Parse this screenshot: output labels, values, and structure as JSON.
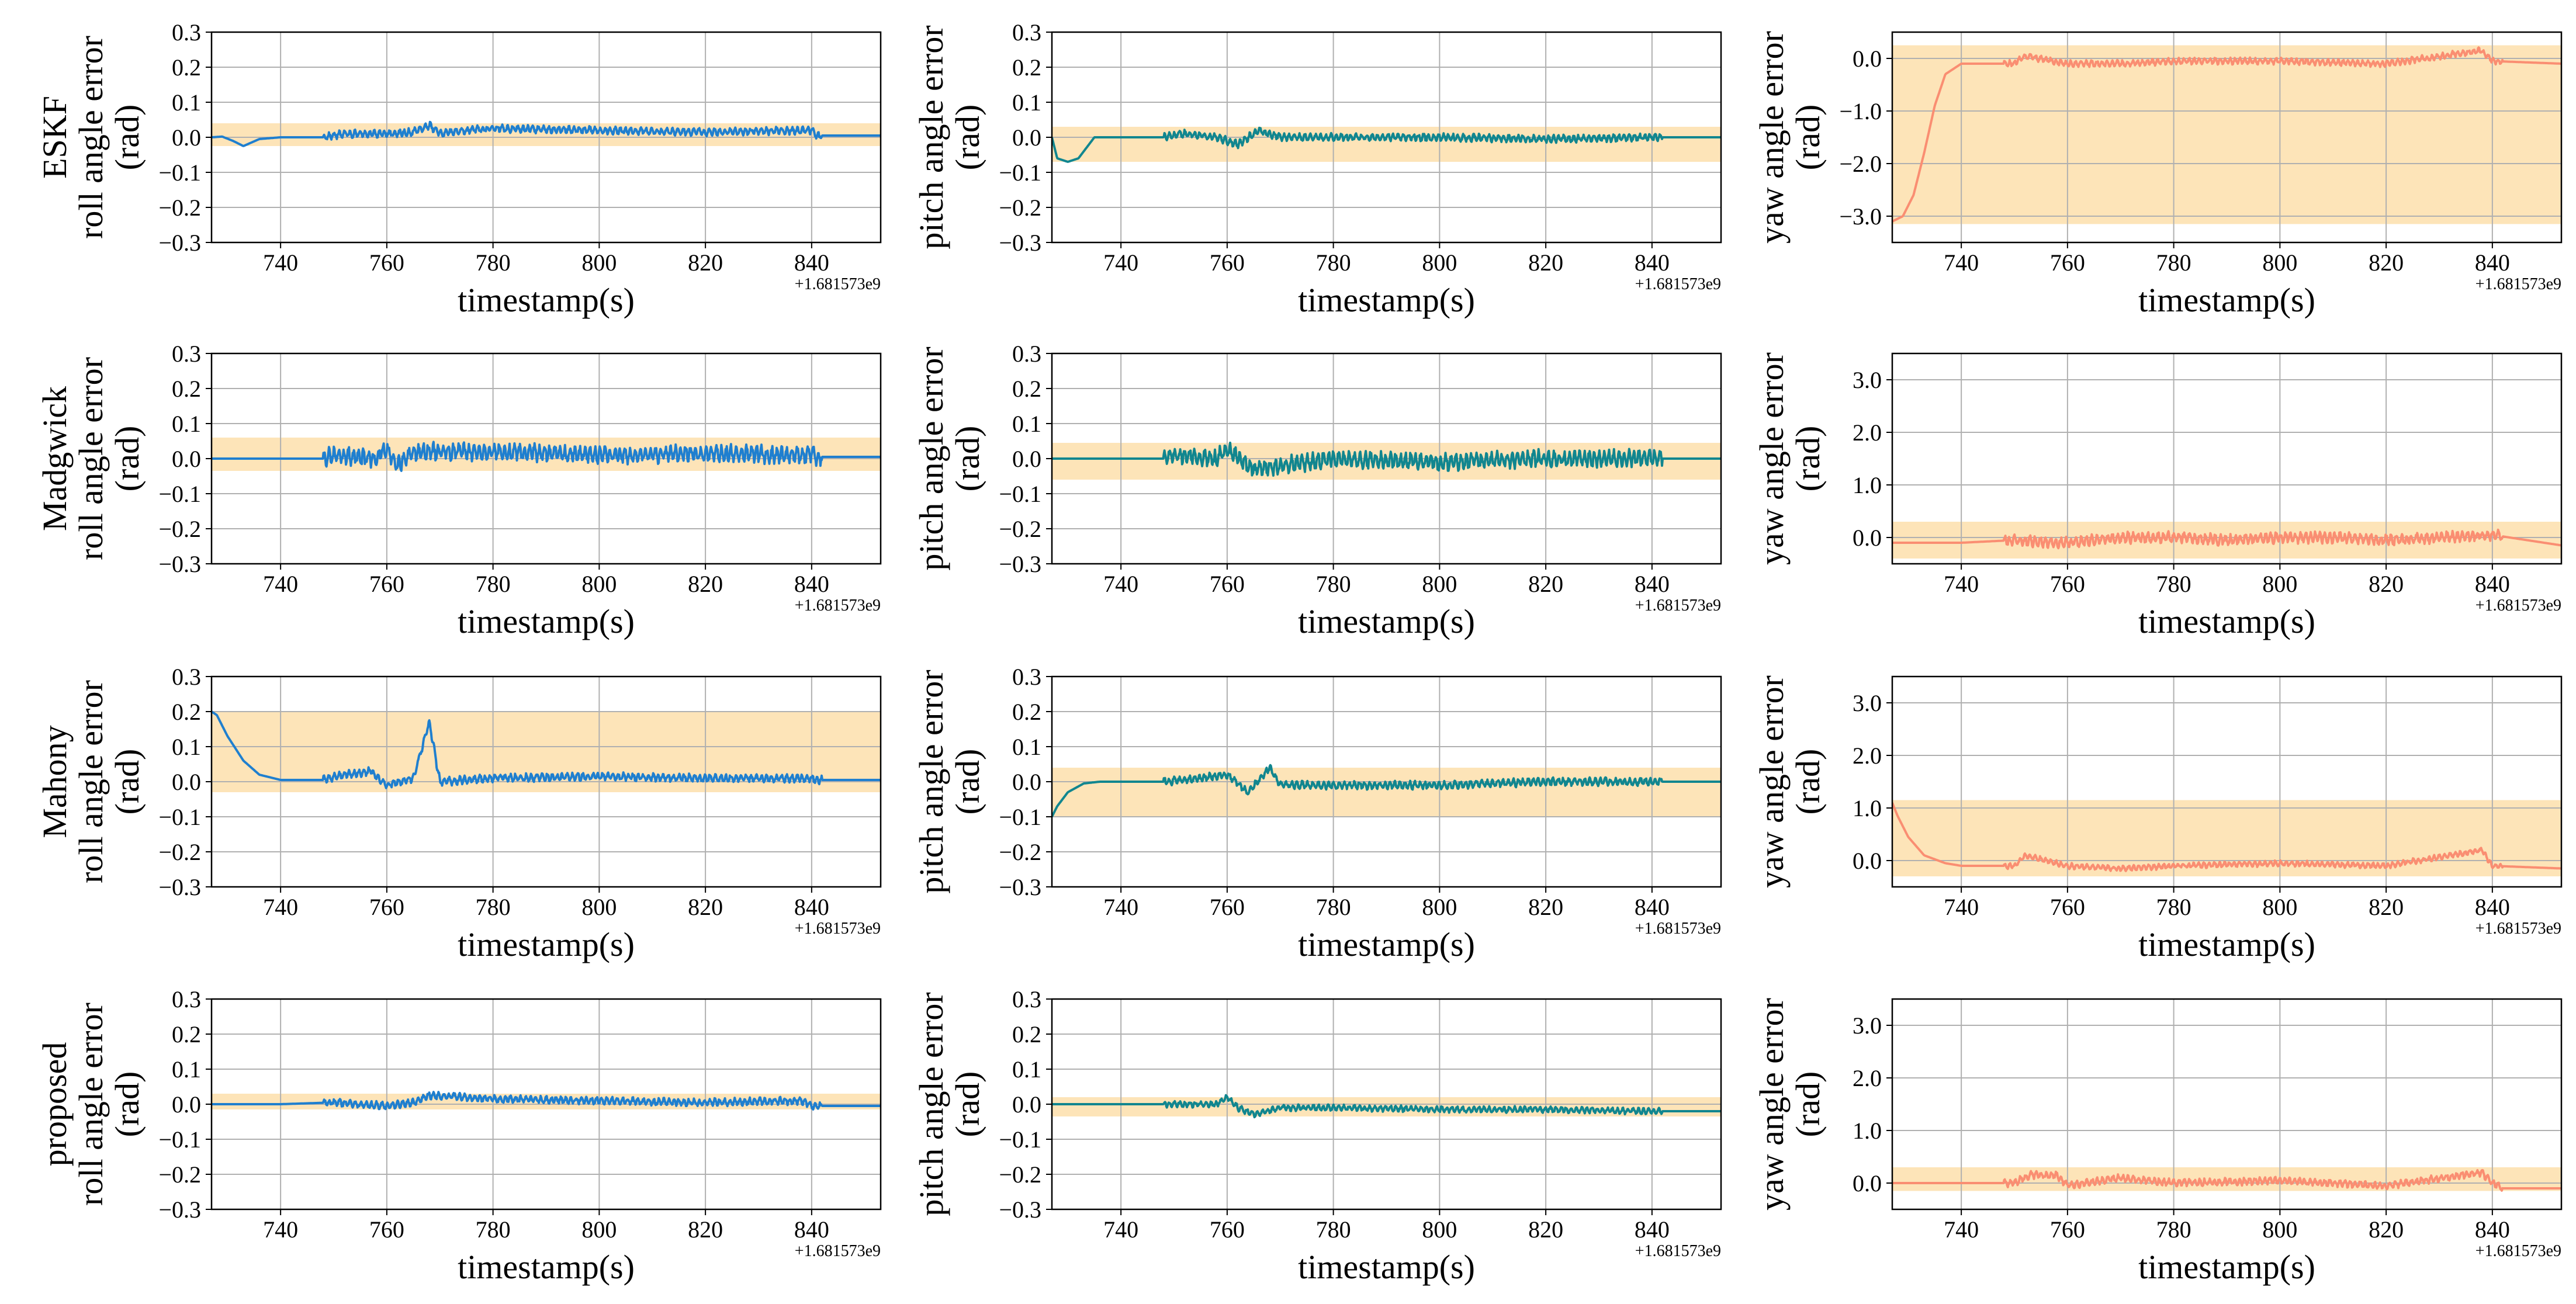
{
  "figure": {
    "xlabel": "timestamp(s)",
    "offset_text": "+1.681573e9",
    "band_color": "#fde4b8",
    "grid_color": "#b0b0b0",
    "colors": {
      "roll": "#1f7fcf",
      "pitch": "#11868f",
      "yaw": "#fa8e72"
    },
    "row_labels": [
      "ESKF",
      "Madgwick",
      "Mahony",
      "proposed"
    ],
    "col_labels": [
      "roll angle error\n(rad)",
      "pitch angle error\n(rad)",
      "yaw angle error\n(rad)"
    ]
  },
  "chart_data": [
    {
      "type": "line",
      "row": "ESKF",
      "angle": "roll",
      "ylabel": "roll angle error\n(rad)",
      "xlabel": "timestamp(s)",
      "xlim": [
        727,
        853
      ],
      "ylim": [
        -0.3,
        0.3
      ],
      "yticks": [
        -0.3,
        -0.2,
        -0.1,
        0.0,
        0.1,
        0.2,
        0.3
      ],
      "ytick_labels": [
        "−0.3",
        "−0.2",
        "−0.1",
        "0.0",
        "0.1",
        "0.2",
        "0.3"
      ],
      "xticks": [
        740,
        760,
        780,
        800,
        820,
        840
      ],
      "band": [
        -0.025,
        0.04
      ],
      "noise_amp": 0.012,
      "grid": true,
      "x": [
        727,
        729,
        731,
        733,
        736,
        740,
        748,
        752,
        760,
        765,
        768,
        770,
        775,
        780,
        800,
        820,
        840,
        841,
        853
      ],
      "y": [
        0.0,
        0.002,
        -0.01,
        -0.025,
        -0.005,
        0.0,
        0.0,
        0.01,
        0.01,
        0.015,
        0.035,
        0.01,
        0.02,
        0.025,
        0.02,
        0.015,
        0.02,
        0.005,
        0.005
      ]
    },
    {
      "type": "line",
      "row": "ESKF",
      "angle": "pitch",
      "ylabel": "pitch angle error\n(rad)",
      "xlabel": "timestamp(s)",
      "xlim": [
        727,
        853
      ],
      "ylim": [
        -0.3,
        0.3
      ],
      "yticks": [
        -0.3,
        -0.2,
        -0.1,
        0.0,
        0.1,
        0.2,
        0.3
      ],
      "ytick_labels": [
        "−0.3",
        "−0.2",
        "−0.1",
        "0.0",
        "0.1",
        "0.2",
        "0.3"
      ],
      "xticks": [
        740,
        760,
        780,
        800,
        820,
        840
      ],
      "band": [
        -0.07,
        0.03
      ],
      "noise_amp": 0.012,
      "grid": true,
      "x": [
        727,
        728,
        730,
        732,
        735,
        740,
        748,
        752,
        758,
        762,
        766,
        770,
        780,
        800,
        820,
        840,
        841,
        853
      ],
      "y": [
        0.0,
        -0.06,
        -0.07,
        -0.06,
        0.0,
        0.0,
        0.0,
        0.01,
        0.0,
        -0.02,
        0.02,
        0.0,
        0.0,
        0.0,
        -0.005,
        0.0,
        0.0,
        0.0
      ]
    },
    {
      "type": "line",
      "row": "ESKF",
      "angle": "yaw",
      "ylabel": "yaw angle error\n(rad)",
      "xlabel": "timestamp(s)",
      "xlim": [
        727,
        853
      ],
      "ylim": [
        -3.5,
        0.5
      ],
      "yticks": [
        -3.0,
        -2.0,
        -1.0,
        0.0
      ],
      "ytick_labels": [
        "−3.0",
        "−2.0",
        "−1.0",
        "0.0"
      ],
      "xticks": [
        740,
        760,
        780,
        800,
        820,
        840
      ],
      "band": [
        -3.15,
        0.25
      ],
      "noise_amp": 0.07,
      "grid": true,
      "x": [
        727,
        729,
        731,
        733,
        735,
        737,
        740,
        750,
        752,
        760,
        770,
        780,
        800,
        820,
        838,
        840,
        853
      ],
      "y": [
        -3.1,
        -3.0,
        -2.6,
        -1.8,
        -0.9,
        -0.3,
        -0.1,
        -0.1,
        0.05,
        -0.1,
        -0.1,
        -0.05,
        -0.05,
        -0.1,
        0.15,
        -0.05,
        -0.1
      ]
    },
    {
      "type": "line",
      "row": "Madgwick",
      "angle": "roll",
      "ylabel": "roll angle error\n(rad)",
      "xlabel": "timestamp(s)",
      "xlim": [
        727,
        853
      ],
      "ylim": [
        -0.3,
        0.3
      ],
      "yticks": [
        -0.3,
        -0.2,
        -0.1,
        0.0,
        0.1,
        0.2,
        0.3
      ],
      "ytick_labels": [
        "−0.3",
        "−0.2",
        "−0.1",
        "0.0",
        "0.1",
        "0.2",
        "0.3"
      ],
      "xticks": [
        740,
        760,
        780,
        800,
        820,
        840
      ],
      "band": [
        -0.035,
        0.06
      ],
      "noise_amp": 0.028,
      "grid": true,
      "x": [
        727,
        740,
        748,
        750,
        758,
        760,
        762,
        765,
        770,
        780,
        800,
        820,
        840,
        841,
        853
      ],
      "y": [
        0.0,
        0.0,
        0.0,
        0.01,
        0.0,
        0.03,
        -0.02,
        0.02,
        0.02,
        0.02,
        0.01,
        0.015,
        0.01,
        0.005,
        0.005
      ]
    },
    {
      "type": "line",
      "row": "Madgwick",
      "angle": "pitch",
      "ylabel": "pitch angle error\n(rad)",
      "xlabel": "timestamp(s)",
      "xlim": [
        727,
        853
      ],
      "ylim": [
        -0.3,
        0.3
      ],
      "yticks": [
        -0.3,
        -0.2,
        -0.1,
        0.0,
        0.1,
        0.2,
        0.3
      ],
      "ytick_labels": [
        "−0.3",
        "−0.2",
        "−0.1",
        "0.0",
        "0.1",
        "0.2",
        "0.3"
      ],
      "xticks": [
        740,
        760,
        780,
        800,
        820,
        840
      ],
      "band": [
        -0.06,
        0.045
      ],
      "noise_amp": 0.028,
      "grid": true,
      "x": [
        727,
        740,
        748,
        750,
        758,
        760,
        765,
        770,
        780,
        800,
        820,
        840,
        841,
        853
      ],
      "y": [
        0.0,
        0.0,
        0.0,
        0.01,
        0.0,
        0.03,
        -0.03,
        -0.02,
        0.0,
        -0.01,
        0.0,
        0.0,
        0.0,
        0.0
      ]
    },
    {
      "type": "line",
      "row": "Madgwick",
      "angle": "yaw",
      "ylabel": "yaw angle error\n(rad)",
      "xlabel": "timestamp(s)",
      "xlim": [
        727,
        853
      ],
      "ylim": [
        -0.5,
        3.5
      ],
      "yticks": [
        0.0,
        1.0,
        2.0,
        3.0
      ],
      "ytick_labels": [
        "0.0",
        "1.0",
        "2.0",
        "3.0"
      ],
      "xticks": [
        740,
        760,
        780,
        800,
        820,
        840
      ],
      "band": [
        -0.4,
        0.3
      ],
      "noise_amp": 0.12,
      "grid": true,
      "x": [
        727,
        740,
        750,
        760,
        770,
        780,
        790,
        800,
        810,
        820,
        830,
        840,
        853
      ],
      "y": [
        -0.1,
        -0.1,
        -0.05,
        -0.1,
        0.0,
        0.0,
        -0.05,
        0.0,
        0.0,
        -0.05,
        0.0,
        0.05,
        -0.15
      ]
    },
    {
      "type": "line",
      "row": "Mahony",
      "angle": "roll",
      "ylabel": "roll angle error\n(rad)",
      "xlabel": "timestamp(s)",
      "xlim": [
        727,
        853
      ],
      "ylim": [
        -0.3,
        0.3
      ],
      "yticks": [
        -0.3,
        -0.2,
        -0.1,
        0.0,
        0.1,
        0.2,
        0.3
      ],
      "ytick_labels": [
        "−0.3",
        "−0.2",
        "−0.1",
        "0.0",
        "0.1",
        "0.2",
        "0.3"
      ],
      "xticks": [
        740,
        760,
        780,
        800,
        820,
        840
      ],
      "band": [
        -0.03,
        0.2
      ],
      "noise_amp": 0.013,
      "grid": true,
      "x": [
        727,
        728,
        730,
        733,
        736,
        740,
        748,
        752,
        757,
        760,
        765,
        768,
        770,
        780,
        800,
        820,
        840,
        841,
        853
      ],
      "y": [
        0.2,
        0.19,
        0.13,
        0.06,
        0.02,
        0.005,
        0.005,
        0.02,
        0.03,
        -0.01,
        0.01,
        0.17,
        0.0,
        0.01,
        0.015,
        0.01,
        0.01,
        0.005,
        0.005
      ]
    },
    {
      "type": "line",
      "row": "Mahony",
      "angle": "pitch",
      "ylabel": "pitch angle error\n(rad)",
      "xlabel": "timestamp(s)",
      "xlim": [
        727,
        853
      ],
      "ylim": [
        -0.3,
        0.3
      ],
      "yticks": [
        -0.3,
        -0.2,
        -0.1,
        0.0,
        0.1,
        0.2,
        0.3
      ],
      "ytick_labels": [
        "−0.3",
        "−0.2",
        "−0.1",
        "0.0",
        "0.1",
        "0.2",
        "0.3"
      ],
      "xticks": [
        740,
        760,
        780,
        800,
        820,
        840
      ],
      "band": [
        -0.1,
        0.04
      ],
      "noise_amp": 0.013,
      "grid": true,
      "x": [
        727,
        728,
        730,
        733,
        736,
        740,
        748,
        755,
        760,
        764,
        768,
        770,
        780,
        800,
        820,
        840,
        841,
        853
      ],
      "y": [
        -0.1,
        -0.07,
        -0.03,
        -0.005,
        0.0,
        0.0,
        0.0,
        0.01,
        0.02,
        -0.03,
        0.04,
        -0.01,
        -0.01,
        -0.01,
        0.0,
        0.0,
        0.0,
        0.0
      ]
    },
    {
      "type": "line",
      "row": "Mahony",
      "angle": "yaw",
      "ylabel": "yaw angle error\n(rad)",
      "xlabel": "timestamp(s)",
      "xlim": [
        727,
        853
      ],
      "ylim": [
        -0.5,
        3.5
      ],
      "yticks": [
        0.0,
        1.0,
        2.0,
        3.0
      ],
      "ytick_labels": [
        "0.0",
        "1.0",
        "2.0",
        "3.0"
      ],
      "xticks": [
        740,
        760,
        780,
        800,
        820,
        840
      ],
      "band": [
        -0.3,
        1.15
      ],
      "noise_amp": 0.06,
      "grid": true,
      "x": [
        727,
        728,
        730,
        733,
        737,
        740,
        750,
        752,
        760,
        770,
        780,
        800,
        820,
        838,
        840,
        853
      ],
      "y": [
        1.1,
        0.85,
        0.45,
        0.1,
        -0.05,
        -0.1,
        -0.1,
        0.1,
        -0.1,
        -0.15,
        -0.1,
        -0.05,
        -0.1,
        0.2,
        -0.1,
        -0.15
      ]
    },
    {
      "type": "line",
      "row": "proposed",
      "angle": "roll",
      "ylabel": "roll angle error\n(rad)",
      "xlabel": "timestamp(s)",
      "xlim": [
        727,
        853
      ],
      "ylim": [
        -0.3,
        0.3
      ],
      "yticks": [
        -0.3,
        -0.2,
        -0.1,
        0.0,
        0.1,
        0.2,
        0.3
      ],
      "ytick_labels": [
        "−0.3",
        "−0.2",
        "−0.1",
        "0.0",
        "0.1",
        "0.2",
        "0.3"
      ],
      "xticks": [
        740,
        760,
        780,
        800,
        820,
        840
      ],
      "band": [
        -0.015,
        0.03
      ],
      "noise_amp": 0.012,
      "grid": true,
      "x": [
        727,
        740,
        750,
        760,
        765,
        768,
        780,
        800,
        820,
        838,
        840,
        842,
        853
      ],
      "y": [
        0.0,
        0.0,
        0.005,
        -0.005,
        0.005,
        0.025,
        0.015,
        0.01,
        0.005,
        0.01,
        -0.005,
        -0.005,
        -0.005
      ]
    },
    {
      "type": "line",
      "row": "proposed",
      "angle": "pitch",
      "ylabel": "pitch angle error\n(rad)",
      "xlabel": "timestamp(s)",
      "xlim": [
        727,
        853
      ],
      "ylim": [
        -0.3,
        0.3
      ],
      "yticks": [
        -0.3,
        -0.2,
        -0.1,
        0.0,
        0.1,
        0.2,
        0.3
      ],
      "ytick_labels": [
        "−0.3",
        "−0.2",
        "−0.1",
        "0.0",
        "0.1",
        "0.2",
        "0.3"
      ],
      "xticks": [
        740,
        760,
        780,
        800,
        820,
        840
      ],
      "band": [
        -0.035,
        0.02
      ],
      "noise_amp": 0.01,
      "grid": true,
      "x": [
        727,
        740,
        750,
        758,
        760,
        762,
        765,
        770,
        780,
        800,
        820,
        840,
        853
      ],
      "y": [
        0.0,
        0.0,
        0.0,
        0.0,
        0.02,
        -0.01,
        -0.03,
        -0.01,
        -0.01,
        -0.015,
        -0.015,
        -0.02,
        -0.02
      ]
    },
    {
      "type": "line",
      "row": "proposed",
      "angle": "yaw",
      "ylabel": "yaw angle error\n(rad)",
      "xlabel": "timestamp(s)",
      "xlim": [
        727,
        853
      ],
      "ylim": [
        -0.5,
        3.5
      ],
      "yticks": [
        0.0,
        1.0,
        2.0,
        3.0
      ],
      "ytick_labels": [
        "0.0",
        "1.0",
        "2.0",
        "3.0"
      ],
      "xticks": [
        740,
        760,
        780,
        800,
        820,
        840
      ],
      "band": [
        -0.15,
        0.3
      ],
      "noise_amp": 0.08,
      "grid": true,
      "x": [
        727,
        740,
        750,
        753,
        758,
        760,
        770,
        780,
        800,
        820,
        838,
        840,
        842,
        853
      ],
      "y": [
        0.0,
        0.0,
        0.0,
        0.15,
        0.15,
        -0.05,
        0.1,
        0.0,
        0.05,
        -0.05,
        0.2,
        0.0,
        -0.1,
        -0.1
      ]
    }
  ]
}
